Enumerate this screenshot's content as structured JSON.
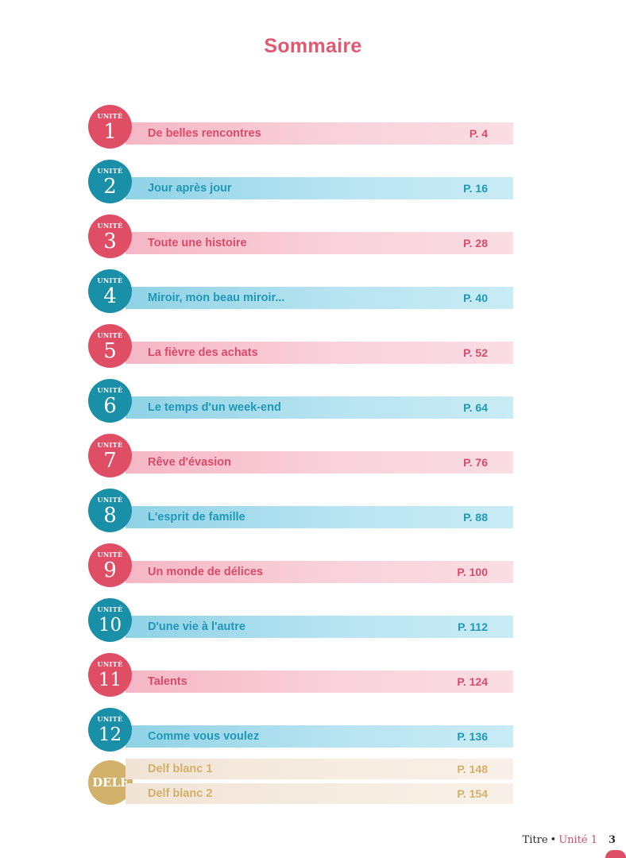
{
  "title": "Sommaire",
  "unite_label": "UNITÉ",
  "units": [
    {
      "num": "1",
      "title": "De belles rencontres",
      "page": "P. 4",
      "color": "pink"
    },
    {
      "num": "2",
      "title": "Jour après jour",
      "page": "P. 16",
      "color": "blue"
    },
    {
      "num": "3",
      "title": "Toute une histoire",
      "page": "P. 28",
      "color": "pink"
    },
    {
      "num": "4",
      "title": "Miroir, mon beau miroir...",
      "page": "P. 40",
      "color": "blue"
    },
    {
      "num": "5",
      "title": "La fièvre des achats",
      "page": "P. 52",
      "color": "pink"
    },
    {
      "num": "6",
      "title": "Le temps d'un week-end",
      "page": "P. 64",
      "color": "blue"
    },
    {
      "num": "7",
      "title": "Rêve d'évasion",
      "page": "P. 76",
      "color": "pink"
    },
    {
      "num": "8",
      "title": "L'esprit de famille",
      "page": "P. 88",
      "color": "blue"
    },
    {
      "num": "9",
      "title": "Un monde de délices",
      "page": "P. 100",
      "color": "pink"
    },
    {
      "num": "10",
      "title": "D'une vie à l'autre",
      "page": "P. 112",
      "color": "blue"
    },
    {
      "num": "11",
      "title": "Talents",
      "page": "P. 124",
      "color": "pink"
    },
    {
      "num": "12",
      "title": "Comme vous voulez",
      "page": "P. 136",
      "color": "blue"
    }
  ],
  "delf": {
    "label": "DELF",
    "entries": [
      {
        "title": "Delf blanc 1",
        "page": "P. 148"
      },
      {
        "title": "Delf blanc 2",
        "page": "P. 154"
      }
    ]
  },
  "footer": {
    "text": "Titre",
    "separator": "•",
    "unit": "Unité 1",
    "page_number": "3"
  },
  "colors": {
    "pink": "#e04e66",
    "blue": "#1a8fa8",
    "delf": "#d2b26a"
  }
}
